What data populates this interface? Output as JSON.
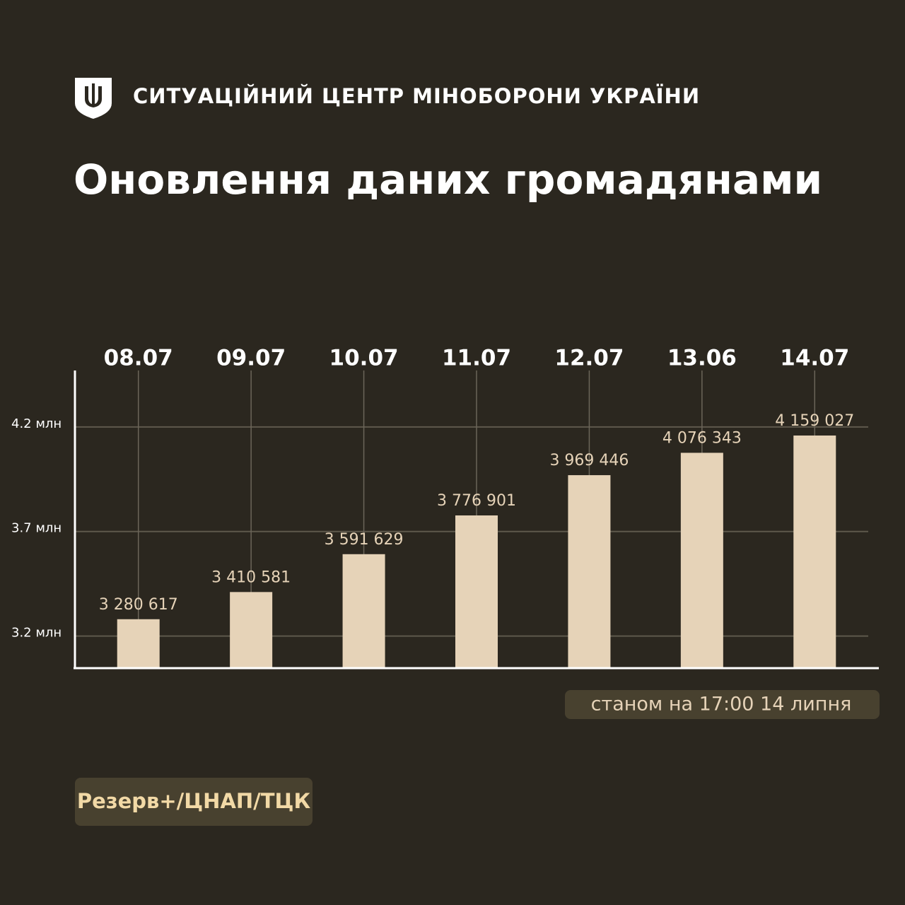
{
  "chart_data": {
    "type": "bar",
    "header": "СИТУАЦІЙНИЙ ЦЕНТР МІНОБОРОНИ УКРАЇНИ",
    "title": "Оновлення даних громадянами",
    "categories": [
      "08.07",
      "09.07",
      "10.07",
      "11.07",
      "12.07",
      "13.06",
      "14.07"
    ],
    "values": [
      3280617,
      3410581,
      3591629,
      3776901,
      3969446,
      4076343,
      4159027
    ],
    "value_labels": [
      "3 280 617",
      "3 410 581",
      "3 591 629",
      "3 776 901",
      "3 969 446",
      "4 076 343",
      "4 159 027"
    ],
    "color": "#e6d3b8",
    "ylim": [
      3050000,
      4470000
    ],
    "yticks": [
      {
        "value": 3200000,
        "label": "3.2 млн"
      },
      {
        "value": 3700000,
        "label": "3.7 млн"
      },
      {
        "value": 4200000,
        "label": "4.2 млн"
      }
    ],
    "grid": true,
    "note": "станом на 17:00 14 липня",
    "source": "Резерв+/ЦНАП/ТЦК"
  }
}
